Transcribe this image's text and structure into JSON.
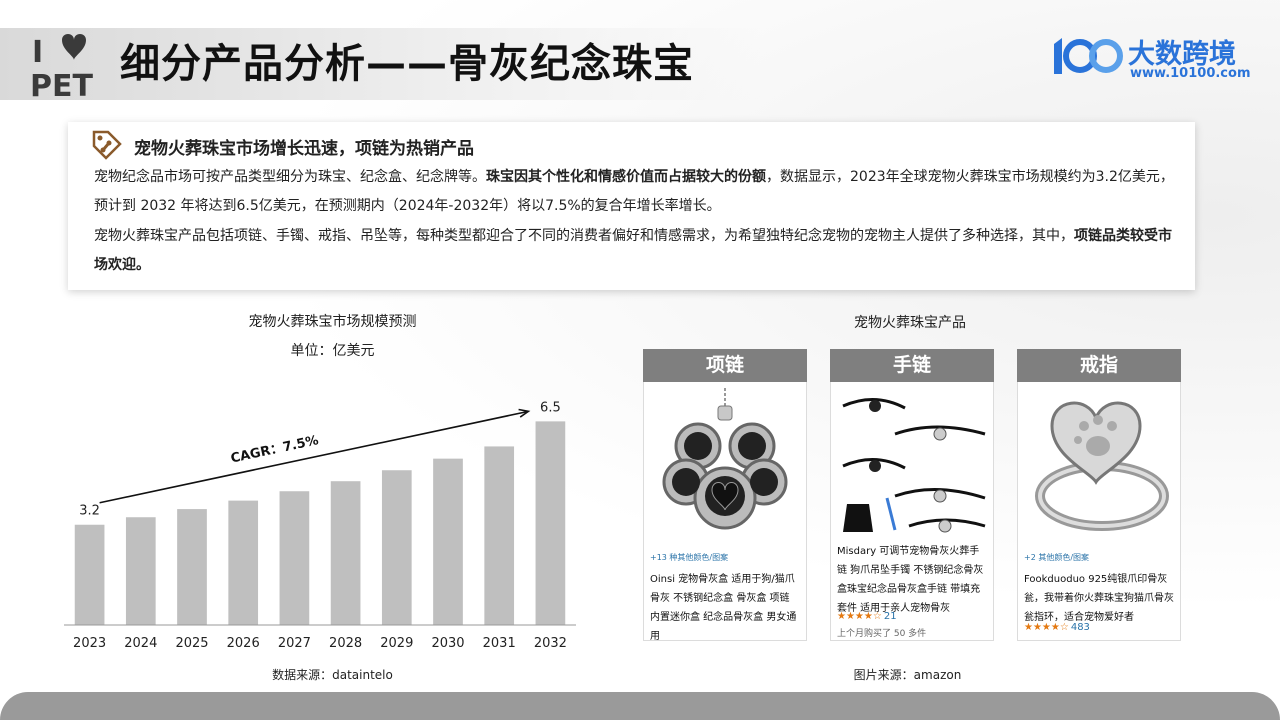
{
  "title": "细分产品分析——骨灰纪念珠宝",
  "logo": {
    "text": "I ♥ PET"
  },
  "brand": {
    "name": "大数跨境",
    "url": "www.10100.com",
    "mark": "100",
    "color": "#2a73d9"
  },
  "card": {
    "heading": "宠物火葬珠宝市场增长迅速，项链为热销产品",
    "p1_a": "宠物纪念品市场可按产品类型细分为珠宝、纪念盒、纪念牌等。",
    "p1_b": "珠宝因其个性化和情感价值而占据较大的份额",
    "p1_c": "，数据显示，2023年全球宠物火葬珠宝市场规模约为3.2亿美元，预计到 2032 年将达到6.5亿美元，在预测期内（2024年-2032年）将以7.5%的复合年增长率增长。",
    "p2_a": "宠物火葬珠宝产品包括项链、手镯、戒指、吊坠等，每种类型都迎合了不同的消费者偏好和情感需求，为希望独特纪念宠物的宠物主人提供了多种选择，其中，",
    "p2_b": "项链品类较受市场欢迎。"
  },
  "chart": {
    "title": "宠物火葬珠宝市场规模预测",
    "unit": "单位：亿美元",
    "source": "数据来源：dataintelo",
    "cagr_label": "CAGR：7.5%"
  },
  "chart_data": {
    "type": "bar",
    "title": "宠物火葬珠宝市场规模预测",
    "unit": "单位：亿美元",
    "categories": [
      "2023",
      "2024",
      "2025",
      "2026",
      "2027",
      "2028",
      "2029",
      "2030",
      "2031",
      "2032"
    ],
    "values": [
      3.2,
      3.44,
      3.7,
      3.97,
      4.27,
      4.59,
      4.94,
      5.31,
      5.7,
      6.5
    ],
    "data_labels": {
      "2023": "3.2",
      "2032": "6.5"
    },
    "annotation": "CAGR：7.5%",
    "ylim": [
      0,
      7
    ],
    "grid": false,
    "bar_color": "#bfbfbf"
  },
  "products": {
    "title": "宠物火葬珠宝产品",
    "source": "图片来源：amazon",
    "items": [
      {
        "category": "项链",
        "more": "+13 种其他颜色/图案",
        "desc": "Oinsi 宠物骨灰盒 适用于狗/猫爪骨灰 不锈钢纪念盒 骨灰盒 项链 内置迷你盒 纪念品骨灰盒 男女通用",
        "rating": "",
        "count": "",
        "sub": ""
      },
      {
        "category": "手链",
        "more": "",
        "desc": "Misdary 可调节宠物骨灰火葬手链 狗爪吊坠手镯 不锈钢纪念骨灰盒珠宝纪念品骨灰盒手链 带填充套件 适用于亲人宠物骨灰",
        "rating": "★★★★☆",
        "count": "21",
        "sub": "上个月购买了 50 多件"
      },
      {
        "category": "戒指",
        "more": "+2 其他颜色/图案",
        "desc": "Fookduoduo 925纯银爪印骨灰瓮，我带着你火葬珠宝狗猫爪骨灰瓮指环，适合宠物爱好者",
        "rating": "★★★★☆",
        "count": "483",
        "sub": ""
      }
    ]
  }
}
